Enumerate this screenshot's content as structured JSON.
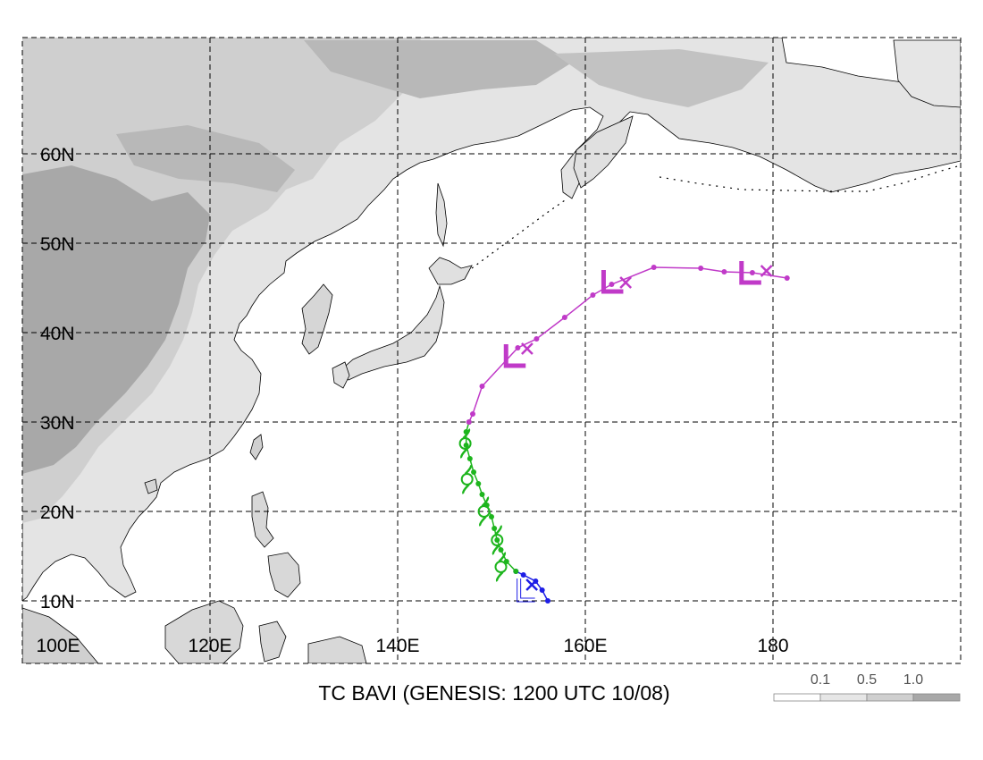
{
  "title": "TC BAVI (GENESIS: 1200 UTC 10/08)",
  "lat_labels": [
    "10N",
    "20N",
    "30N",
    "40N",
    "50N",
    "60N"
  ],
  "lon_labels": [
    "100E",
    "120E",
    "140E",
    "160E",
    "180"
  ],
  "legend": {
    "labels": [
      "0.1",
      "0.5",
      "1.0"
    ],
    "colors": [
      "#ffffff",
      "#e6e6e6",
      "#cfcfcf",
      "#a8a8a8"
    ]
  },
  "map": {
    "lon_range": [
      100,
      200
    ],
    "lat_range": [
      3,
      73
    ],
    "grid": true
  },
  "track": {
    "colors": {
      "early": "#1e1ee6",
      "tropical": "#1db51d",
      "extratropical": "#c03ac8"
    },
    "early_points": [
      [
        156.0,
        10.0
      ],
      [
        155.4,
        11.2
      ],
      [
        154.7,
        12.2
      ],
      [
        153.4,
        12.9
      ],
      [
        152.6,
        13.3
      ]
    ],
    "tropical_points": [
      [
        152.6,
        13.3
      ],
      [
        151.6,
        14.4
      ],
      [
        151.0,
        15.7
      ],
      [
        150.6,
        16.8
      ],
      [
        150.3,
        18.1
      ],
      [
        150.0,
        19.4
      ],
      [
        149.5,
        20.7
      ],
      [
        149.0,
        21.9
      ],
      [
        148.6,
        23.1
      ],
      [
        148.1,
        24.4
      ],
      [
        147.7,
        25.9
      ],
      [
        147.3,
        27.4
      ],
      [
        147.3,
        28.9
      ],
      [
        147.6,
        30.0
      ]
    ],
    "extratropical_points": [
      [
        147.6,
        30.0
      ],
      [
        148.0,
        30.9
      ],
      [
        149.0,
        34.0
      ],
      [
        152.8,
        38.3
      ],
      [
        154.8,
        39.3
      ],
      [
        157.8,
        41.7
      ],
      [
        160.8,
        44.2
      ],
      [
        162.8,
        45.4
      ],
      [
        167.3,
        47.3
      ],
      [
        172.3,
        47.2
      ],
      [
        174.8,
        46.8
      ],
      [
        177.8,
        46.7
      ],
      [
        181.5,
        46.1
      ]
    ],
    "symbols": {
      "L_marks": [
        [
          152.5,
          37.1
        ],
        [
          162.9,
          45.4
        ],
        [
          177.6,
          46.4
        ]
      ],
      "x_marks": [
        [
          153.8,
          38.2
        ],
        [
          164.3,
          45.6
        ],
        [
          179.3,
          46.9
        ],
        [
          154.3,
          11.8
        ]
      ],
      "tc_marks": [
        [
          147.2,
          27.6
        ],
        [
          147.4,
          23.6
        ],
        [
          149.2,
          20.0
        ],
        [
          150.6,
          16.8
        ],
        [
          151.0,
          13.8
        ]
      ],
      "outline_L_mark": [
        153.3,
        10.7
      ]
    }
  }
}
